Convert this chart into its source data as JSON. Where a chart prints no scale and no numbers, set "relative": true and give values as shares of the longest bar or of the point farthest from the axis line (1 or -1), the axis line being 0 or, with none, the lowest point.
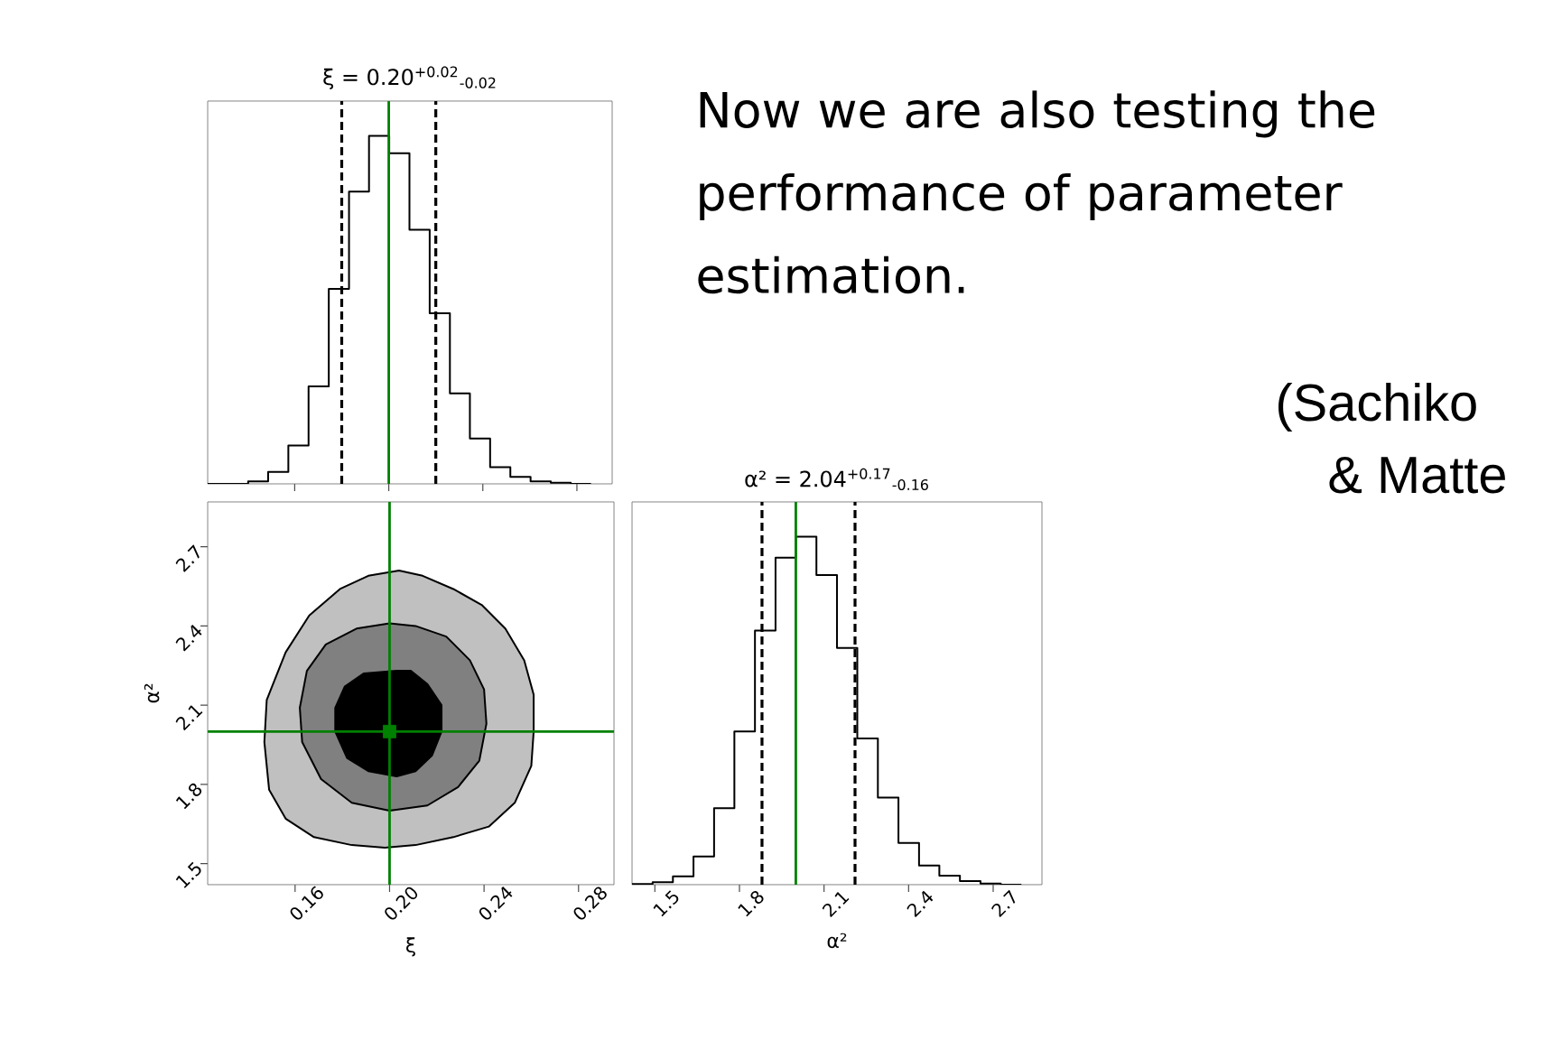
{
  "chart_data": [
    {
      "type": "step",
      "title": "ξ = 0.20$^{+0.02}$$_{-0.02}$",
      "relative": true,
      "color": "#000000",
      "x": [
        0.123,
        0.1316,
        0.1402,
        0.1487,
        0.1573,
        0.1659,
        0.1745,
        0.1831,
        0.1916,
        0.2002,
        0.2088,
        0.2174,
        0.226,
        0.2345,
        0.2431,
        0.2517,
        0.2603,
        0.2689,
        0.2774,
        0.286
      ],
      "values": [
        0,
        0,
        0.007,
        0.034,
        0.11,
        0.28,
        0.56,
        0.84,
        1,
        0.95,
        0.73,
        0.49,
        0.26,
        0.13,
        0.048,
        0.02,
        0.007,
        0.003,
        0,
        0
      ],
      "xlim": [
        0.123,
        0.295
      ],
      "xticks": [
        0.16,
        0.2,
        0.24,
        0.28
      ],
      "tick_labels": false,
      "ref_lines": [
        {
          "axis": "x",
          "value": 0.18,
          "color": "#000000",
          "line_style": "dashed"
        },
        {
          "axis": "x",
          "value": 0.22,
          "color": "#000000",
          "line_style": "dashed"
        },
        {
          "axis": "x",
          "value": 0.2,
          "color": "#008000",
          "line_style": "solid"
        }
      ]
    },
    {
      "type": "area",
      "xlabel": "ξ",
      "ylabel": "α²",
      "xlim": [
        0.123,
        0.295
      ],
      "ylim": [
        1.42,
        2.87
      ],
      "xticks": [
        0.16,
        {
          "value": 0.2,
          "label": "0.20"
        },
        0.24,
        0.28
      ],
      "yticks": [
        1.5,
        1.8,
        2.1,
        2.4,
        2.7
      ],
      "series": [
        {
          "type": "area",
          "color": "#c0c0c0",
          "x": [
            0.204,
            0.191,
            0.179,
            0.166,
            0.156,
            0.148,
            0.147,
            0.149,
            0.156,
            0.168,
            0.184,
            0.198,
            0.211,
            0.227,
            0.242,
            0.253,
            0.26,
            0.261,
            0.261,
            0.257,
            0.249,
            0.239,
            0.227,
            0.214
          ],
          "values": [
            2.61,
            2.59,
            2.54,
            2.44,
            2.3,
            2.12,
            1.96,
            1.78,
            1.67,
            1.6,
            1.57,
            1.56,
            1.57,
            1.6,
            1.64,
            1.73,
            1.87,
            2.0,
            2.14,
            2.27,
            2.39,
            2.48,
            2.54,
            2.59
          ]
        },
        {
          "type": "area",
          "color": "#808080",
          "x": [
            0.2,
            0.186,
            0.173,
            0.165,
            0.162,
            0.163,
            0.171,
            0.184,
            0.2,
            0.216,
            0.229,
            0.238,
            0.241,
            0.24,
            0.234,
            0.224,
            0.211
          ],
          "values": [
            2.41,
            2.39,
            2.33,
            2.23,
            2.09,
            1.96,
            1.82,
            1.73,
            1.7,
            1.72,
            1.79,
            1.89,
            2.03,
            2.16,
            2.27,
            2.36,
            2.4
          ]
        },
        {
          "type": "area",
          "color": "#000000",
          "x": [
            0.203,
            0.189,
            0.181,
            0.177,
            0.177,
            0.182,
            0.191,
            0.203,
            0.211,
            0.218,
            0.222,
            0.222,
            0.216,
            0.209
          ],
          "values": [
            2.23,
            2.22,
            2.17,
            2.09,
            2.0,
            1.9,
            1.85,
            1.83,
            1.85,
            1.91,
            2.0,
            2.1,
            2.18,
            2.23
          ]
        },
        {
          "type": "scatter",
          "color": "#008000",
          "marker": "square",
          "x": [
            0.2
          ],
          "values": [
            2.0
          ]
        }
      ],
      "ref_lines": [
        {
          "axis": "x",
          "value": 0.2,
          "color": "#008000",
          "line_style": "solid"
        },
        {
          "axis": "y",
          "value": 2.0,
          "color": "#008000",
          "line_style": "solid"
        }
      ]
    },
    {
      "type": "step",
      "title": "α² = 2.04$^{+0.17}$$_{-0.16}$",
      "xlabel": "α²",
      "relative": true,
      "color": "#000000",
      "x": [
        1.419,
        1.492,
        1.564,
        1.637,
        1.71,
        1.782,
        1.855,
        1.928,
        2.0,
        2.073,
        2.146,
        2.218,
        2.291,
        2.364,
        2.437,
        2.509,
        2.582,
        2.655,
        2.727,
        2.8
      ],
      "values": [
        0.002,
        0.007,
        0.024,
        0.081,
        0.22,
        0.44,
        0.73,
        0.94,
        1,
        0.89,
        0.68,
        0.42,
        0.25,
        0.12,
        0.055,
        0.026,
        0.01,
        0.003,
        0,
        0
      ],
      "xlim": [
        1.419,
        2.873
      ],
      "xticks": [
        1.5,
        1.8,
        2.1,
        2.4,
        2.7
      ],
      "ref_lines": [
        {
          "axis": "x",
          "value": 1.88,
          "color": "#000000",
          "line_style": "dashed"
        },
        {
          "axis": "x",
          "value": 2.21,
          "color": "#000000",
          "line_style": "dashed"
        },
        {
          "axis": "x",
          "value": 2.0,
          "color": "#008000",
          "line_style": "solid"
        }
      ]
    },
    {
      "type": "other",
      "annotations": [
        "Now we are also testing the performance of parameter estimation.",
        "(Sachiko",
        "& Matte"
      ]
    }
  ]
}
